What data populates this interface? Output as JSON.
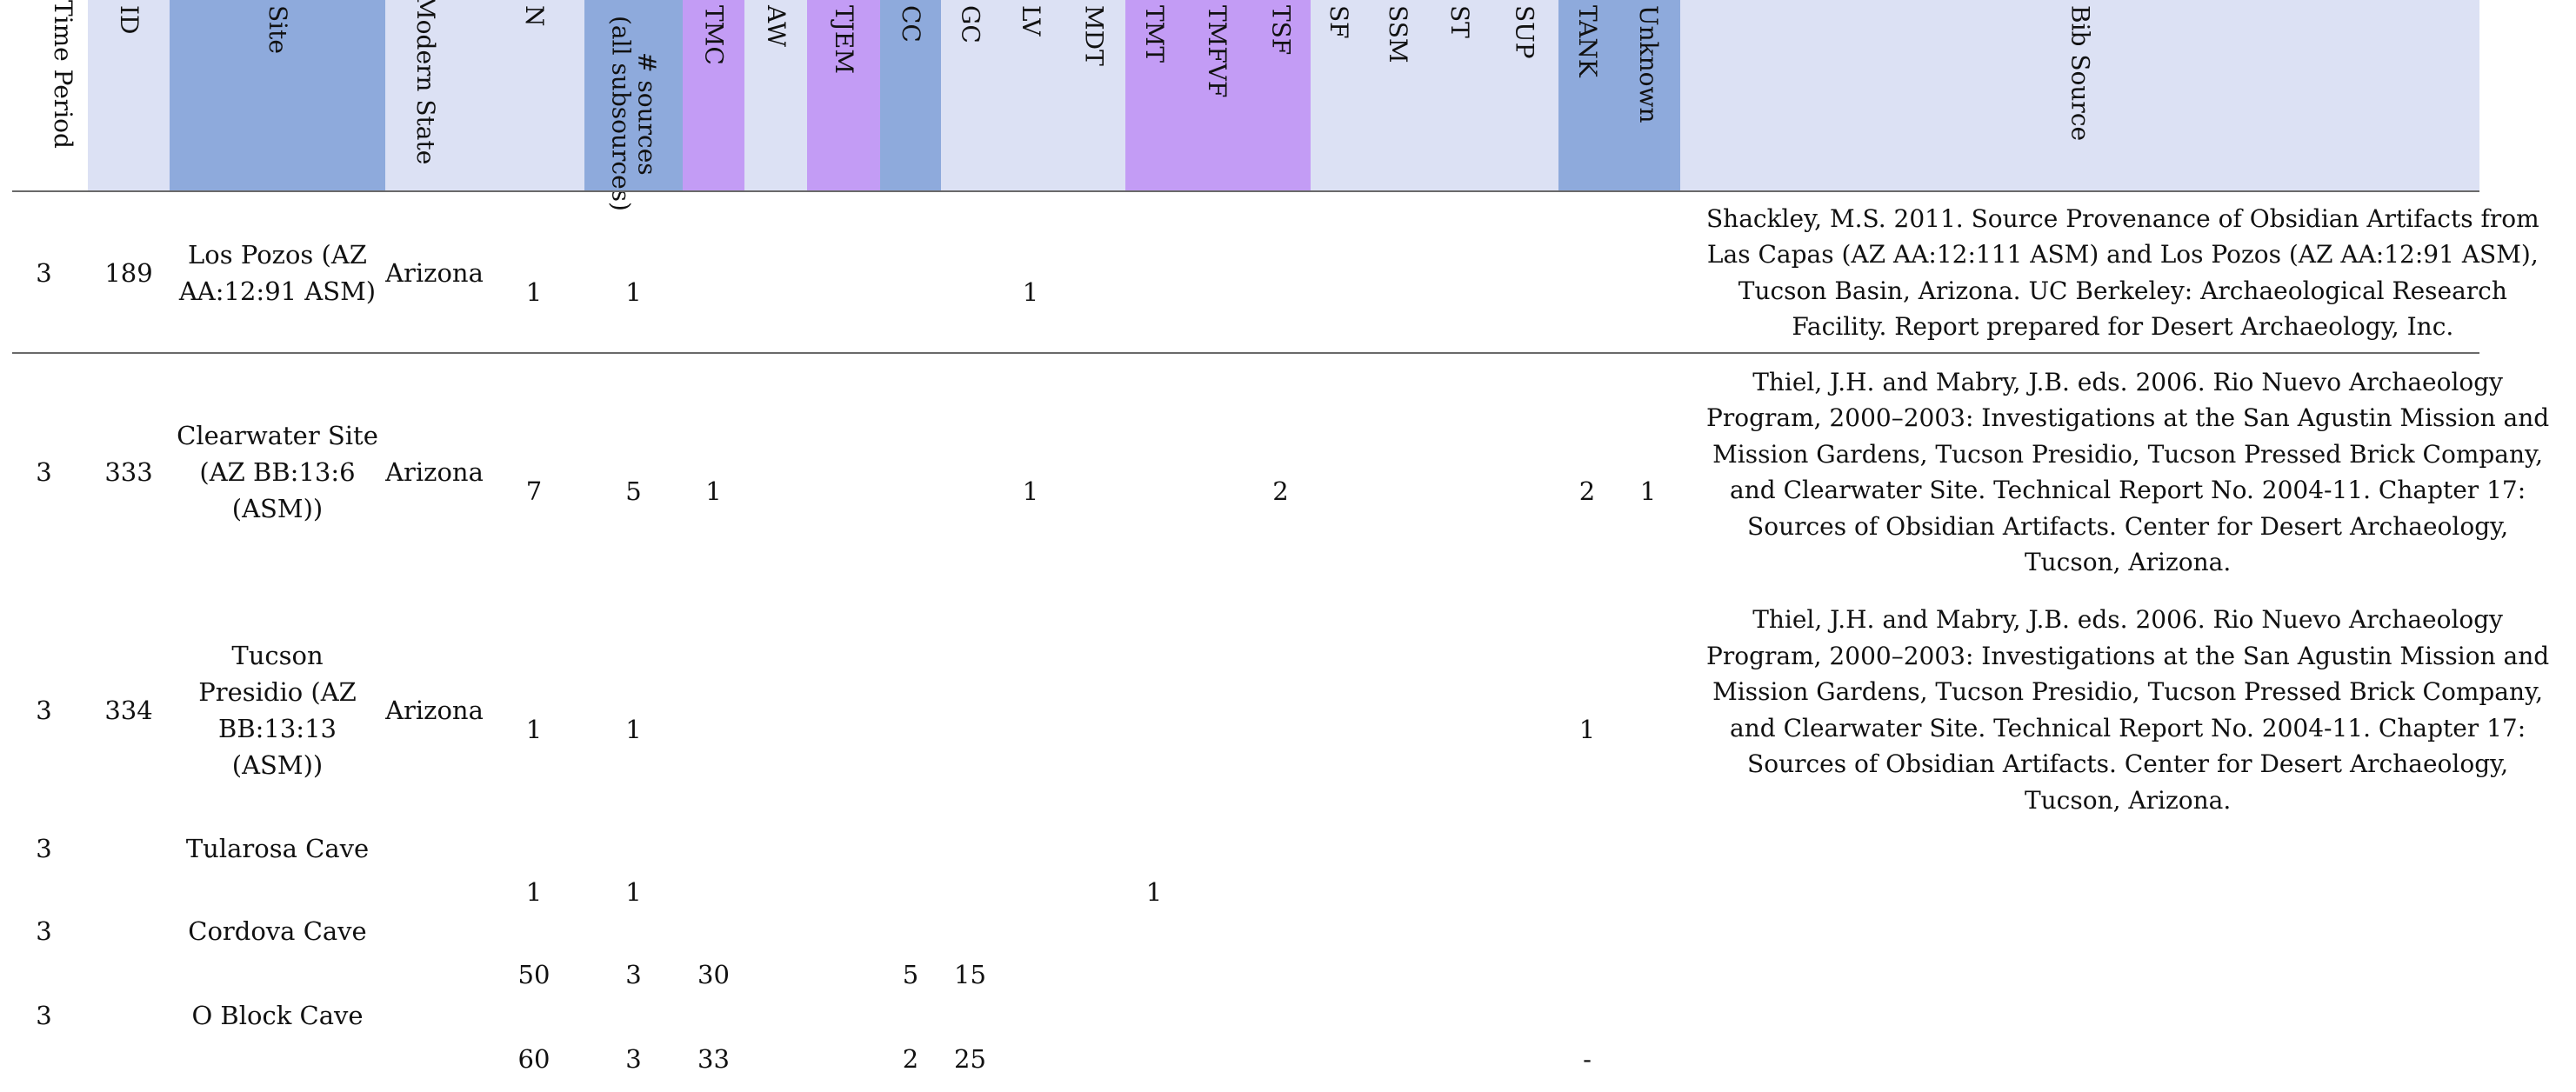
{
  "header": {
    "columns": [
      {
        "key": "time_period",
        "label": "Time Period",
        "color": "#ffffff"
      },
      {
        "key": "id",
        "label": "ID",
        "color": "#dce1f4"
      },
      {
        "key": "site",
        "label": "Site",
        "color": "#8eaadc"
      },
      {
        "key": "modern_state",
        "label": "Modern State",
        "color": "#dce1f4"
      },
      {
        "key": "n",
        "label": "N",
        "color": "#dce1f4"
      },
      {
        "key": "num_sources",
        "label": "# sources\n(all subsources)",
        "color": "#8eaadc"
      },
      {
        "key": "tmc",
        "label": "TMC",
        "color": "#c39cf5"
      },
      {
        "key": "aw",
        "label": "AW",
        "color": "#dce1f4"
      },
      {
        "key": "tjem",
        "label": "TJEM",
        "color": "#c39cf5"
      },
      {
        "key": "cc",
        "label": "CC",
        "color": "#8eaadc"
      },
      {
        "key": "gc",
        "label": "GC",
        "color": "#dce1f4"
      },
      {
        "key": "lv",
        "label": "LV",
        "color": "#dce1f4"
      },
      {
        "key": "mdt",
        "label": "MDT",
        "color": "#dce1f4"
      },
      {
        "key": "tmt",
        "label": "TMT",
        "color": "#c39cf5"
      },
      {
        "key": "tmfvf",
        "label": "TMFVF",
        "color": "#c39cf5"
      },
      {
        "key": "tsf",
        "label": "TSF",
        "color": "#c39cf5"
      },
      {
        "key": "sf",
        "label": "SF",
        "color": "#dce1f4"
      },
      {
        "key": "ssm",
        "label": "SSM",
        "color": "#dce1f4"
      },
      {
        "key": "st",
        "label": "ST",
        "color": "#dce1f4"
      },
      {
        "key": "sup",
        "label": "SUP",
        "color": "#dce1f4"
      },
      {
        "key": "tank",
        "label": "TANK",
        "color": "#8eaadc"
      },
      {
        "key": "unknown",
        "label": "Unknown",
        "color": "#8eaadc"
      },
      {
        "key": "bib_source",
        "label": "Bib Source",
        "color": "#dce1f4"
      }
    ]
  },
  "rows": [
    {
      "time_period": "3",
      "id": "189",
      "site": "Los Pozos (AZ\nAA:12:91 ASM)",
      "modern_state": "Arizona",
      "n": "1",
      "num_sources": "1",
      "lv": "1",
      "bib_source": "Shackley, M.S. 2011. Source Provenance of Obsidian Artifacts from\nLas Capas (AZ AA:12:111 ASM) and Los Pozos (AZ AA:12:91 ASM),\nTucson Basin, Arizona. UC Berkeley: Archaeological Research\nFacility. Report prepared for Desert Archaeology, Inc."
    },
    {
      "time_period": "3",
      "id": "333",
      "site": "Clearwater Site\n(AZ BB:13:6\n(ASM))",
      "modern_state": "Arizona",
      "n": "7",
      "num_sources": "5",
      "tmc": "1",
      "lv": "1",
      "tsf": "2",
      "tank": "2",
      "unknown": "1",
      "bib_source": "Thiel, J.H. and Mabry, J.B. eds. 2006. Rio Nuevo Archaeology\nProgram, 2000–2003: Investigations at the San Agustin Mission and\nMission Gardens, Tucson Presidio, Tucson Pressed Brick Company,\nand Clearwater Site. Technical Report No. 2004-11. Chapter 17:\nSources of Obsidian Artifacts. Center for Desert Archaeology,\nTucson, Arizona."
    },
    {
      "time_period": "3",
      "id": "334",
      "site": "Tucson\nPresidio (AZ\nBB:13:13\n(ASM))",
      "modern_state": "Arizona",
      "n": "1",
      "num_sources": "1",
      "tank": "1",
      "bib_source": "Thiel, J.H. and Mabry, J.B. eds. 2006. Rio Nuevo Archaeology\nProgram, 2000–2003: Investigations at the San Agustin Mission and\nMission Gardens, Tucson Presidio, Tucson Pressed Brick Company,\nand Clearwater Site. Technical Report No. 2004-11. Chapter 17:\nSources of Obsidian Artifacts. Center for Desert Archaeology,\nTucson, Arizona."
    },
    {
      "time_period": "3",
      "id": "",
      "site": "Tularosa Cave",
      "modern_state": "",
      "n": "1",
      "num_sources": "1",
      "tmt": "1",
      "bib_source": ""
    },
    {
      "time_period": "3",
      "id": "",
      "site": "Cordova Cave",
      "modern_state": "",
      "n": "50",
      "num_sources": "3",
      "tmc": "30",
      "cc": "5",
      "gc": "15",
      "bib_source": ""
    },
    {
      "time_period": "3",
      "id": "",
      "site": "O Block Cave",
      "modern_state": "",
      "n": "60",
      "num_sources": "3",
      "tmc": "33",
      "cc": "2",
      "gc": "25",
      "tank": "-",
      "bib_source": ""
    }
  ]
}
